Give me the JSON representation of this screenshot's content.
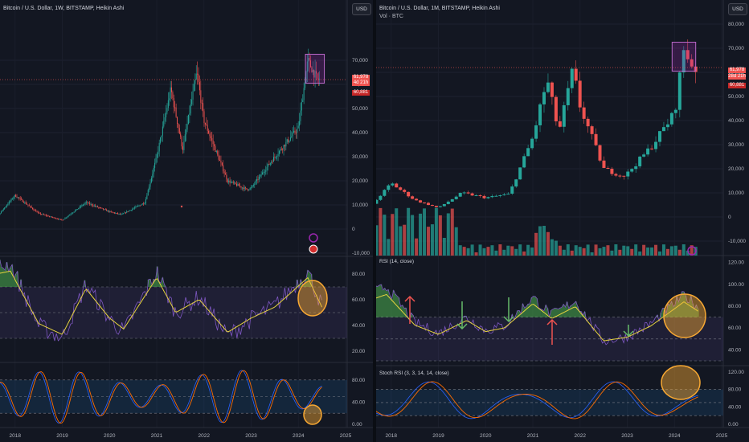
{
  "left": {
    "title": "Bitcoin / U.S. Dollar, 1W, BITSTAMP, Heikin Ashi",
    "currency": "USD",
    "price_ticks": [
      "70,000",
      "60,000",
      "50,000",
      "40,000",
      "30,000",
      "20,000",
      "10,000",
      "0",
      "-10,000"
    ],
    "rsi_ticks": [
      "80.00",
      "60.00",
      "40.00",
      "20.00"
    ],
    "stoch_ticks": [
      "80.00",
      "40.00",
      "0.00"
    ],
    "years": [
      "2018",
      "2019",
      "2020",
      "2021",
      "2022",
      "2023",
      "2024",
      "2025"
    ],
    "price_tag": {
      "price": "61,978",
      "countdown": "4d 21h",
      "low": "60,881"
    }
  },
  "right": {
    "title": "Bitcoin / U.S. Dollar, 1M, BITSTAMP, Heikin Ashi",
    "subtitle": "Vol · BTC",
    "currency": "USD",
    "price_ticks": [
      "80,000",
      "70,000",
      "60,000",
      "50,000",
      "40,000",
      "30,000",
      "20,000",
      "10,000",
      "0",
      "-10,000"
    ],
    "rsi_title": "RSI (14, close)",
    "rsi_ticks": [
      "120.00",
      "100.00",
      "80.00",
      "60.00",
      "40.00"
    ],
    "stoch_title": "Stoch RSI (3, 3, 14, 14, close)",
    "stoch_ticks": [
      "120.00",
      "80.00",
      "40.00",
      "0.00"
    ],
    "years": [
      "2018",
      "2019",
      "2020",
      "2021",
      "2022",
      "2023",
      "2024",
      "2025"
    ],
    "price_tag": {
      "price": "61,978",
      "countdown": "28d 21h",
      "low": "60,881"
    }
  },
  "colors": {
    "background": "#131722",
    "up": "#26a69a",
    "down": "#ef5350",
    "rsi_line": "#7e57c2",
    "rsi_ma": "#e6d33e",
    "highlight": "#f7a833",
    "stoch_k": "#2962ff",
    "stoch_d": "#ff6d00"
  },
  "chart_data": [
    {
      "type": "line",
      "title": "Bitcoin / U.S. Dollar, 1W, BITSTAMP, Heikin Ashi",
      "x": [
        2017.5,
        2018.0,
        2018.5,
        2019.0,
        2019.5,
        2020.0,
        2020.25,
        2020.75,
        2021.0,
        2021.3,
        2021.55,
        2021.85,
        2022.0,
        2022.5,
        2022.9,
        2023.0,
        2023.5,
        2024.0,
        2024.2,
        2024.4
      ],
      "y": [
        2500,
        14000,
        6500,
        3700,
        11000,
        7200,
        6000,
        11000,
        30000,
        58000,
        33000,
        65000,
        45000,
        20000,
        16500,
        17000,
        30000,
        42000,
        70000,
        62000
      ],
      "ylim": [
        -10000,
        80000
      ]
    },
    {
      "type": "bar",
      "title": "Bitcoin / U.S. Dollar, 1M, BITSTAMP, Heikin Ashi",
      "x": [
        2017.5,
        2018.0,
        2018.5,
        2019.0,
        2019.5,
        2020.0,
        2020.5,
        2021.0,
        2021.3,
        2021.55,
        2021.85,
        2022.0,
        2022.5,
        2022.9,
        2023.0,
        2023.5,
        2024.0,
        2024.2,
        2024.4
      ],
      "y": [
        3000,
        14000,
        7000,
        3800,
        10000,
        8000,
        9500,
        33000,
        57000,
        35000,
        61000,
        46000,
        20000,
        17000,
        18000,
        29000,
        43000,
        70000,
        62000
      ],
      "ylim": [
        -10000,
        80000
      ]
    }
  ]
}
